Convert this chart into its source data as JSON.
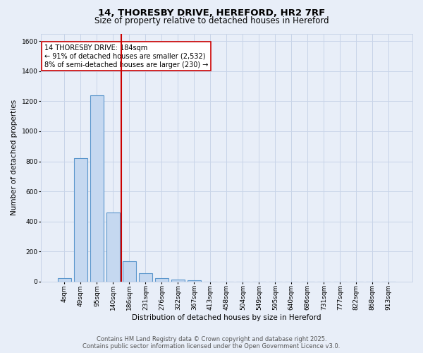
{
  "title_line1": "14, THORESBY DRIVE, HEREFORD, HR2 7RF",
  "title_line2": "Size of property relative to detached houses in Hereford",
  "xlabel": "Distribution of detached houses by size in Hereford",
  "ylabel": "Number of detached properties",
  "categories": [
    "4sqm",
    "49sqm",
    "95sqm",
    "140sqm",
    "186sqm",
    "231sqm",
    "276sqm",
    "322sqm",
    "367sqm",
    "413sqm",
    "458sqm",
    "504sqm",
    "549sqm",
    "595sqm",
    "640sqm",
    "686sqm",
    "731sqm",
    "777sqm",
    "822sqm",
    "868sqm",
    "913sqm"
  ],
  "values": [
    22,
    820,
    1240,
    460,
    135,
    58,
    22,
    12,
    10,
    0,
    0,
    0,
    0,
    0,
    0,
    0,
    0,
    0,
    0,
    0,
    0
  ],
  "bar_color": "#c5d8f0",
  "bar_edge_color": "#5a96cc",
  "vline_x": 3.5,
  "vline_color": "#cc0000",
  "annotation_text": "14 THORESBY DRIVE: 184sqm\n← 91% of detached houses are smaller (2,532)\n8% of semi-detached houses are larger (230) →",
  "annotation_box_color": "#ffffff",
  "annotation_box_edge": "#cc0000",
  "ylim": [
    0,
    1650
  ],
  "yticks": [
    0,
    200,
    400,
    600,
    800,
    1000,
    1200,
    1400,
    1600
  ],
  "grid_color": "#c8d4e8",
  "bg_color": "#e8eef8",
  "plot_bg_color": "#e8eef8",
  "footer_line1": "Contains HM Land Registry data © Crown copyright and database right 2025.",
  "footer_line2": "Contains public sector information licensed under the Open Government Licence v3.0.",
  "title_fontsize": 9.5,
  "subtitle_fontsize": 8.5,
  "axis_label_fontsize": 7.5,
  "tick_fontsize": 6.5,
  "annotation_fontsize": 7,
  "footer_fontsize": 6
}
